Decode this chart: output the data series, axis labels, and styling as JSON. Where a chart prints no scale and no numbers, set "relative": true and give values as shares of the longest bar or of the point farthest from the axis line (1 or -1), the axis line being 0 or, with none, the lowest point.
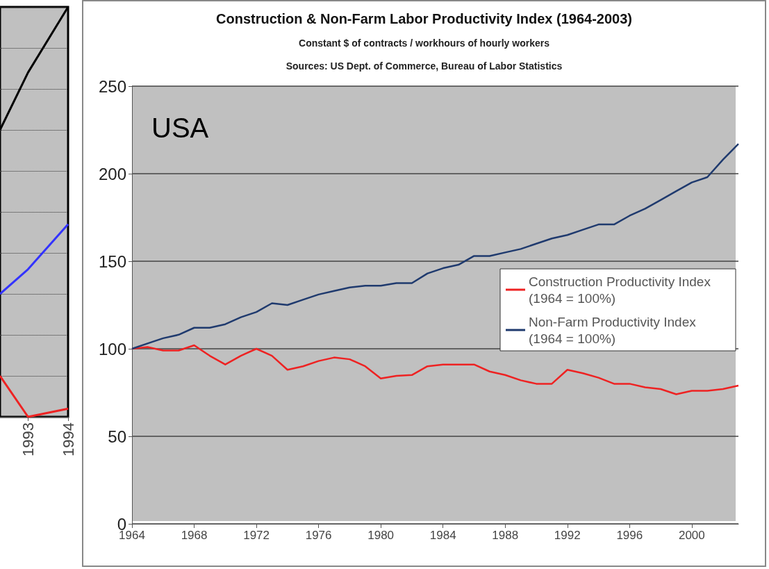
{
  "chart_data": [
    {
      "type": "line",
      "relative": true,
      "x": [
        1992.3,
        1993,
        1994
      ],
      "xlim": [
        1992.3,
        1994
      ],
      "xticks": [
        1993,
        1994
      ],
      "tick_labels": "x",
      "grid": "y",
      "legend": false,
      "series": [
        {
          "color": "#000000",
          "values": [
            0.7,
            0.84,
            1
          ]
        },
        {
          "color": "#3333ff",
          "values": [
            0.3,
            0.36,
            0.47
          ]
        },
        {
          "color": "#ee2222",
          "values": [
            0.1,
            0,
            0.02
          ]
        }
      ]
    },
    {
      "type": "line",
      "title": "Construction & Non-Farm Labor Productivity Index (1964-2003)",
      "subtitle": "Constant $ of contracts / workhours of hourly workers",
      "annotations": [
        "Sources: US Dept. of Commerce, Bureau of Labor Statistics",
        "USA"
      ],
      "x": [
        1964,
        1965,
        1966,
        1967,
        1968,
        1969,
        1970,
        1971,
        1972,
        1973,
        1974,
        1975,
        1976,
        1977,
        1978,
        1979,
        1980,
        1981,
        1982,
        1983,
        1984,
        1985,
        1986,
        1987,
        1988,
        1989,
        1990,
        1991,
        1992,
        1993,
        1994,
        1995,
        1996,
        1997,
        1998,
        1999,
        2000,
        2001,
        2002,
        2003
      ],
      "xlim": [
        1964,
        2003
      ],
      "xticks": [
        1964,
        1968,
        1972,
        1976,
        1980,
        1984,
        1988,
        1992,
        1996,
        2000
      ],
      "ylim": [
        0,
        250
      ],
      "yticks": [
        0,
        50,
        100,
        150,
        200,
        250
      ],
      "grid": "y",
      "legend": "right",
      "marker": "none",
      "series": [
        {
          "name": "Construction Productivity Index (1964 = 100%)",
          "color": "#ee2222",
          "values": [
            100,
            101,
            99,
            99,
            102,
            96,
            91,
            96,
            100,
            96,
            88,
            90,
            93,
            95,
            94,
            90,
            83,
            84.5,
            85,
            90,
            91,
            91,
            91,
            87,
            85,
            82,
            80,
            80,
            88,
            86,
            83.5,
            80,
            80,
            78,
            77,
            74,
            76,
            76,
            77,
            79
          ]
        },
        {
          "name": "Non-Farm Productivity Index (1964 = 100%)",
          "color": "#1f3a6e",
          "values": [
            100,
            103,
            106,
            108,
            112,
            112,
            114,
            118,
            121,
            126,
            125,
            128,
            131,
            133,
            135,
            136,
            136,
            137.5,
            137.5,
            143,
            146,
            148,
            153,
            153,
            155,
            157,
            160,
            163,
            165,
            168,
            171,
            171,
            176,
            180,
            185,
            190,
            195,
            198,
            208,
            217
          ]
        }
      ]
    }
  ]
}
